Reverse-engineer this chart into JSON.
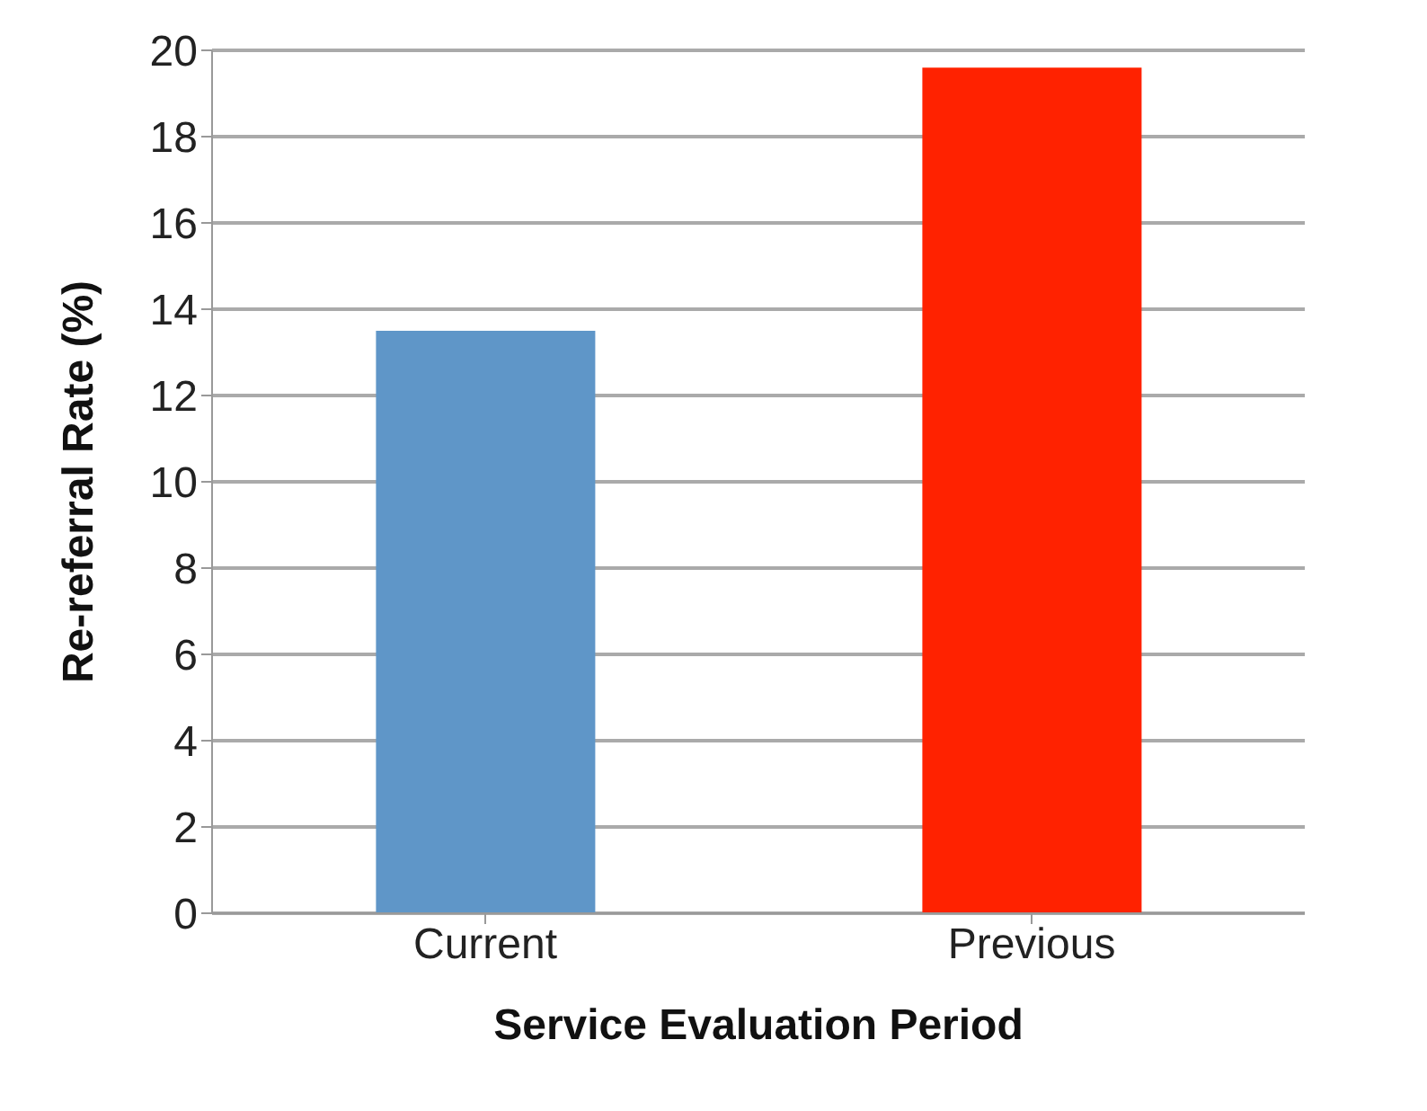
{
  "chart_data": {
    "type": "bar",
    "xlabel": "Service Evaluation Period",
    "ylabel": "Re-referral Rate (%)",
    "categories": [
      "Current",
      "Previous"
    ],
    "values": [
      13.5,
      19.6
    ],
    "colors": [
      "#5f96c8",
      "#ff2200"
    ],
    "ylim": [
      0,
      20
    ],
    "yticks": [
      0,
      2,
      4,
      6,
      8,
      10,
      12,
      14,
      16,
      18,
      20
    ],
    "grid": "y"
  }
}
